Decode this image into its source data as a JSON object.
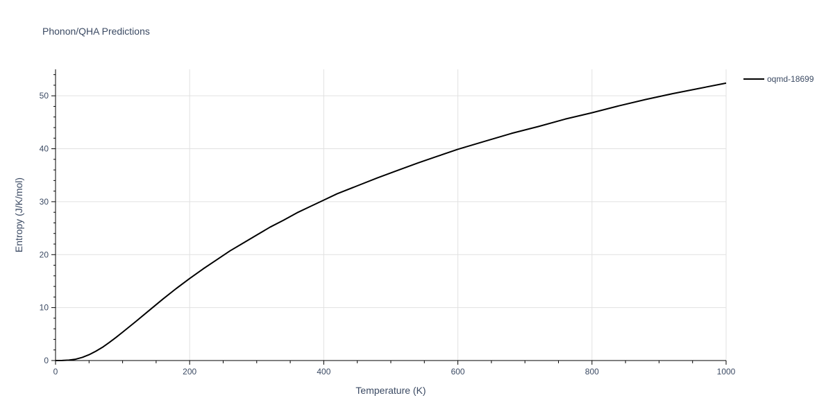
{
  "chart_data": {
    "type": "line",
    "title": "Phonon/QHA Predictions",
    "xlabel": "Temperature (K)",
    "ylabel": "Entropy (J/K/mol)",
    "xlim": [
      0,
      1000
    ],
    "ylim": [
      0,
      55
    ],
    "x_ticks": [
      0,
      200,
      400,
      600,
      800,
      1000
    ],
    "y_ticks": [
      0,
      10,
      20,
      30,
      40,
      50
    ],
    "grid": true,
    "legend_position": "top-right",
    "series": [
      {
        "name": "oqmd-18699",
        "color": "#000000",
        "x": [
          0,
          10,
          20,
          30,
          40,
          50,
          60,
          70,
          80,
          90,
          100,
          120,
          140,
          160,
          180,
          200,
          220,
          240,
          260,
          280,
          300,
          320,
          340,
          360,
          380,
          400,
          420,
          450,
          480,
          510,
          540,
          570,
          600,
          640,
          680,
          720,
          760,
          800,
          840,
          880,
          920,
          960,
          1000
        ],
        "y": [
          0,
          0.02,
          0.08,
          0.25,
          0.6,
          1.1,
          1.75,
          2.5,
          3.4,
          4.35,
          5.35,
          7.4,
          9.5,
          11.6,
          13.6,
          15.5,
          17.3,
          19.0,
          20.7,
          22.2,
          23.7,
          25.2,
          26.5,
          27.9,
          29.1,
          30.3,
          31.5,
          33.0,
          34.5,
          35.9,
          37.3,
          38.6,
          39.9,
          41.4,
          42.9,
          44.2,
          45.6,
          46.8,
          48.1,
          49.3,
          50.4,
          51.4,
          52.4
        ]
      }
    ]
  }
}
